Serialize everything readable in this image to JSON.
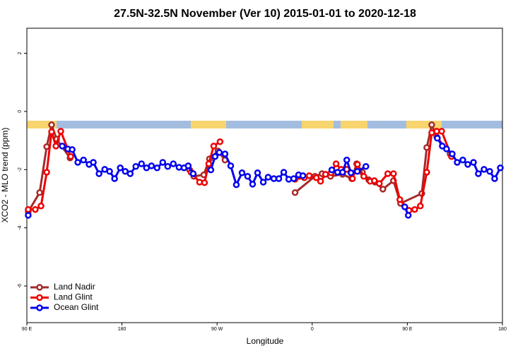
{
  "chart_data": {
    "type": "line",
    "title": "27.5N-32.5N November (Ver 10)   2015-01-01 to 2020-12-18",
    "x_label": "Longitude",
    "y_label": "XCO2 - MLO trend (ppm)",
    "xlim": [
      90,
      540
    ],
    "xticks": [
      {
        "value": 90,
        "label": "90 E"
      },
      {
        "value": 180,
        "label": "180"
      },
      {
        "value": 270,
        "label": "90 W"
      },
      {
        "value": 360,
        "label": "0"
      },
      {
        "value": 450,
        "label": "90 E"
      },
      {
        "value": 540,
        "label": "180"
      }
    ],
    "ylim": [
      -7.26,
      2.86
    ],
    "yticks": [
      2,
      0,
      -2,
      -4,
      -6
    ],
    "legend": "bottom-left",
    "series": [
      {
        "name": "Land Nadir",
        "color": "#a52a2a",
        "x": [
          91.3,
          102.1,
          108.8,
          113.4,
          118.1,
          130.9,
          null,
          244.0,
          248.0,
          257.4,
          262.8,
          270.8,
          277.5,
          null,
          343.8,
          362.6,
          369.3,
          377.3,
          388.7,
          397.4,
          402.1,
          407.5,
          413.5,
          419.5,
          426.9,
          436.9,
          443.6,
          463.7,
          468.4,
          473.1,
          477.8,
          490.5
        ],
        "values": [
          -3.45,
          -2.79,
          -1.21,
          -0.46,
          -0.95,
          -1.6,
          null,
          -2.01,
          -2.23,
          -2.18,
          -1.63,
          -1.36,
          -1.67,
          null,
          -2.79,
          -2.23,
          -2.14,
          -2.23,
          -2.16,
          -2.31,
          -1.8,
          -2.09,
          -2.35,
          -2.43,
          -2.67,
          -2.38,
          -3.16,
          -2.82,
          -1.24,
          -0.46,
          -0.87,
          -1.46
        ]
      },
      {
        "name": "Land Glint",
        "color": "#ee0000",
        "x": [
          91.3,
          98.0,
          103.4,
          108.8,
          113.4,
          117.5,
          122.1,
          131.5,
          null,
          245.4,
          253.4,
          258.1,
          262.1,
          266.8,
          272.8,
          null,
          343.8,
          352.5,
          357.2,
          363.9,
          367.9,
          372.6,
          377.9,
          382.6,
          387.4,
          392.7,
          398.1,
          402.8,
          408.8,
          414.8,
          418.8,
          423.5,
          431.5,
          436.9,
          442.9,
          451.6,
          457.0,
          462.3,
          468.4,
          473.1,
          477.8,
          482.5,
          491.8
        ],
        "values": [
          -3.37,
          -3.37,
          -3.25,
          -2.09,
          -0.7,
          -1.19,
          -0.68,
          -1.55,
          null,
          -2.09,
          -2.43,
          -2.45,
          -1.8,
          -1.19,
          -1.04,
          null,
          -2.33,
          -2.28,
          -2.21,
          -2.28,
          -2.4,
          -2.16,
          -2.11,
          -1.8,
          -1.99,
          -1.99,
          -2.31,
          -1.82,
          -2.23,
          -2.4,
          -2.38,
          -2.48,
          -2.14,
          -2.14,
          -3.03,
          -3.4,
          -3.37,
          -3.25,
          -2.09,
          -0.73,
          -0.68,
          -0.68,
          -1.55
        ]
      },
      {
        "name": "Ocean Glint",
        "color": "#0000ee",
        "x": [
          91.3,
          null,
          123.5,
          128.8,
          132.9,
          138.2,
          143.6,
          148.9,
          152.9,
          158.3,
          163.7,
          168.3,
          173.0,
          178.4,
          183.1,
          187.8,
          193.1,
          198.5,
          203.2,
          207.9,
          213.2,
          218.6,
          223.3,
          228.6,
          234.0,
          238.7,
          242.7,
          247.4,
          null,
          264.1,
          268.1,
          272.1,
          277.5,
          282.9,
          288.2,
          293.6,
          298.9,
          303.6,
          308.3,
          313.7,
          318.3,
          323.7,
          328.4,
          333.1,
          337.8,
          342.5,
          347.1,
          351.2,
          null,
          378.6,
          384.0,
          388.7,
          392.7,
          396.7,
          402.7,
          410.8,
          null,
          447.6,
          450.9,
          null,
          478.4,
          483.1,
          487.1,
          492.5,
          497.2,
          502.5,
          507.2,
          512.6,
          517.2,
          522.6,
          528.0,
          532.6,
          538.0
        ],
        "values": [
          -3.57,
          null,
          -1.19,
          -1.29,
          -1.31,
          -1.75,
          -1.67,
          -1.82,
          -1.75,
          -2.14,
          -1.99,
          -2.06,
          -2.31,
          -1.94,
          -2.06,
          -2.14,
          -1.89,
          -1.8,
          -1.94,
          -1.87,
          -1.94,
          -1.75,
          -1.89,
          -1.8,
          -1.92,
          -1.94,
          -1.87,
          -2.14,
          null,
          -2.01,
          -1.55,
          -1.41,
          -1.46,
          -1.87,
          -2.52,
          -2.11,
          -2.23,
          -2.5,
          -2.11,
          -2.43,
          -2.26,
          -2.31,
          -2.31,
          -2.09,
          -2.33,
          -2.31,
          -2.18,
          -2.21,
          null,
          -2.01,
          -2.09,
          -2.09,
          -1.67,
          -2.11,
          -2.06,
          -1.89,
          null,
          -3.28,
          -3.57,
          null,
          -0.92,
          -1.19,
          -1.29,
          -1.46,
          -1.75,
          -1.67,
          -1.82,
          -1.75,
          -2.14,
          -1.99,
          -2.06,
          -2.31,
          -1.94
        ]
      }
    ]
  }
}
